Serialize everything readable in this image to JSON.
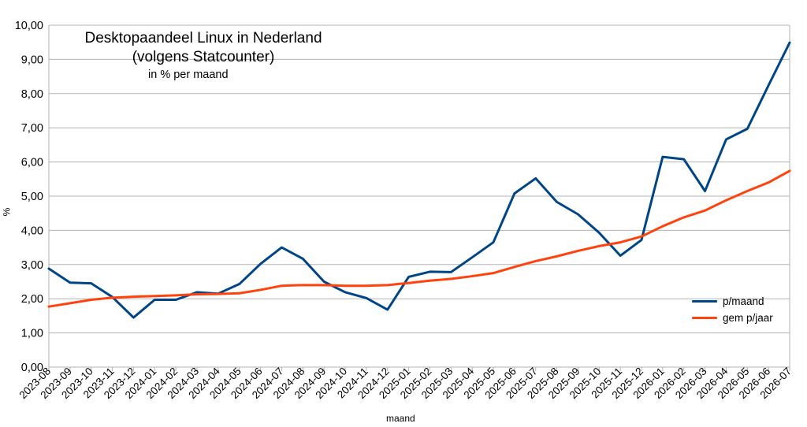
{
  "chart_data": {
    "type": "line",
    "title": "Desktopaandeel Linux in Nederland",
    "title_line2": "(volgens Statcounter)",
    "subtitle": "in % per maand",
    "xlabel": "maand",
    "ylabel": "%",
    "ylim": [
      0,
      10
    ],
    "yticks": [
      "0,00",
      "1,00",
      "2,00",
      "3,00",
      "4,00",
      "5,00",
      "6,00",
      "7,00",
      "8,00",
      "9,00",
      "10,00"
    ],
    "grid": true,
    "legend_position": "bottom-right",
    "categories": [
      "2023-08",
      "2023-09",
      "2023-10",
      "2023-11",
      "2023-12",
      "2024-01",
      "2024-02",
      "2024-03",
      "2024-04",
      "2024-05",
      "2024-06",
      "2024-07",
      "2024-08",
      "2024-09",
      "2024-10",
      "2024-11",
      "2024-12",
      "2025-01",
      "2025-02",
      "2025-03",
      "2025-04",
      "2025-05",
      "2025-06",
      "2025-07",
      "2025-08",
      "2025-09",
      "2025-10",
      "2025-11",
      "2025-12",
      "2026-01",
      "2026-02",
      "2026-03",
      "2026-04",
      "2026-05",
      "2026-06",
      "2026-07"
    ],
    "series": [
      {
        "name": "p/maand",
        "color": "#004586",
        "values": [
          2.88,
          2.47,
          2.45,
          2.05,
          1.45,
          1.97,
          1.97,
          2.19,
          2.15,
          2.43,
          3.02,
          3.5,
          3.17,
          2.5,
          2.19,
          2.02,
          1.68,
          2.64,
          2.79,
          2.78,
          3.21,
          3.65,
          5.08,
          5.52,
          4.83,
          4.47,
          3.93,
          3.26,
          3.72,
          6.15,
          6.08,
          5.15,
          6.66,
          6.97,
          8.24,
          9.49
        ]
      },
      {
        "name": "gem p/jaar",
        "color": "#ff420e",
        "values": [
          1.77,
          1.87,
          1.97,
          2.03,
          2.06,
          2.08,
          2.1,
          2.13,
          2.14,
          2.16,
          2.26,
          2.38,
          2.4,
          2.4,
          2.38,
          2.38,
          2.4,
          2.46,
          2.53,
          2.58,
          2.66,
          2.75,
          2.93,
          3.1,
          3.24,
          3.4,
          3.54,
          3.65,
          3.82,
          4.12,
          4.38,
          4.58,
          4.88,
          5.15,
          5.4,
          5.74
        ]
      }
    ]
  }
}
